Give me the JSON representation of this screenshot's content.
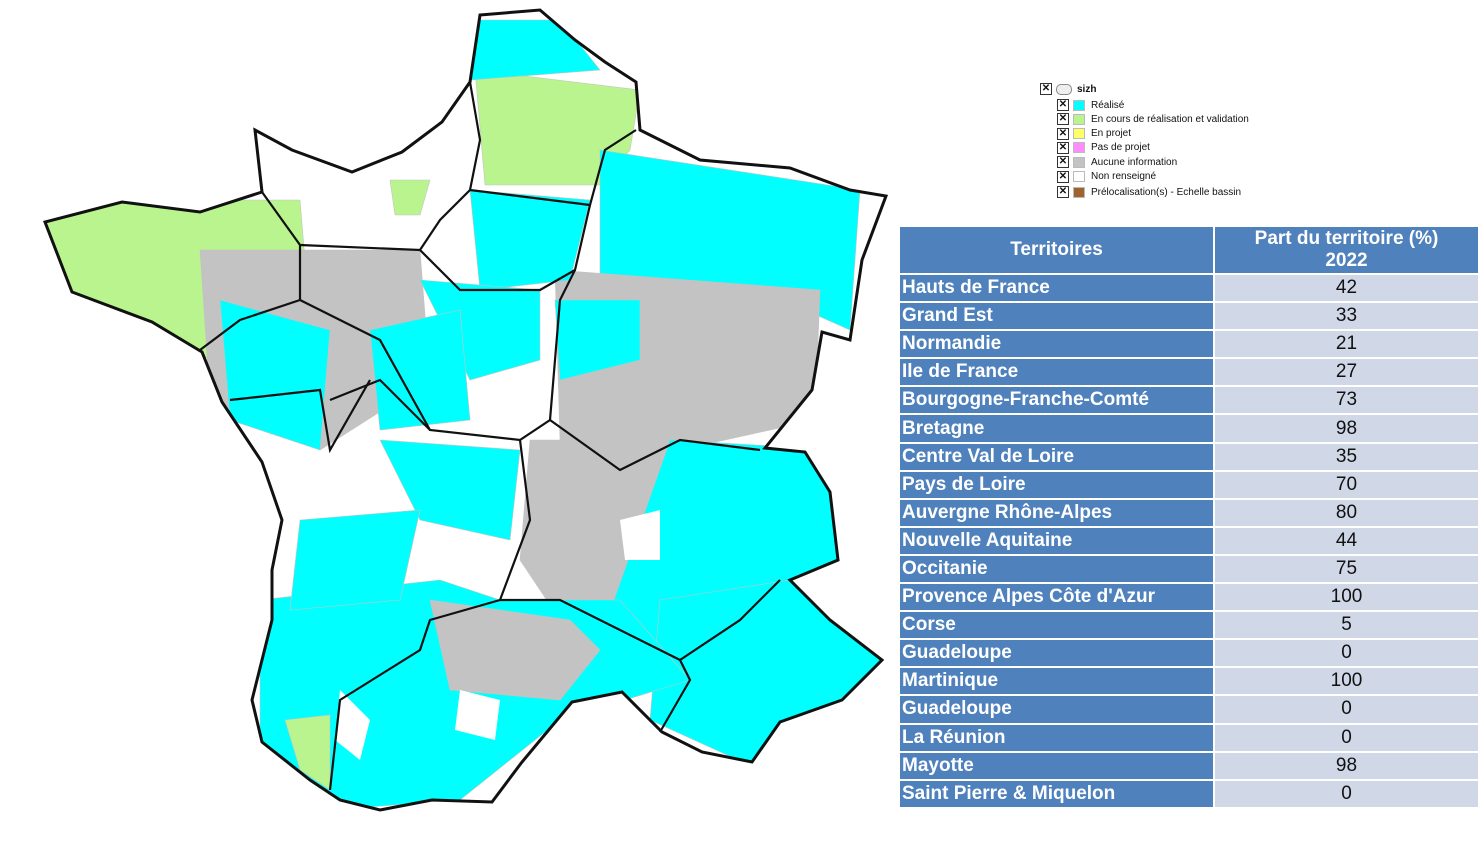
{
  "legend": {
    "title": "sizh",
    "items": [
      {
        "label": "Réalisé",
        "color": "#00ffff"
      },
      {
        "label": "En cours de réalisation et validation",
        "color": "#b9f48e"
      },
      {
        "label": "En projet",
        "color": "#ffff66"
      },
      {
        "label": "Pas de projet",
        "color": "#ff8cff"
      },
      {
        "label": "Aucune information",
        "color": "#c3c3c3"
      },
      {
        "label": "Non renseigné",
        "color": "#ffffff"
      },
      {
        "label": "Prélocalisation(s) - Echelle bassin",
        "color": "#a0622d"
      }
    ]
  },
  "table": {
    "header": {
      "territory": "Territoires",
      "share": "Part du territoire (%)",
      "year": "2022"
    },
    "rows": [
      [
        "Hauts de France",
        42
      ],
      [
        "Grand Est",
        33
      ],
      [
        "Normandie",
        21
      ],
      [
        "Ile de France",
        27
      ],
      [
        "Bourgogne-Franche-Comté",
        73
      ],
      [
        "Bretagne",
        98
      ],
      [
        "Centre Val de Loire",
        35
      ],
      [
        "Pays de Loire",
        70
      ],
      [
        "Auvergne Rhône-Alpes",
        80
      ],
      [
        "Nouvelle Aquitaine",
        44
      ],
      [
        "Occitanie",
        75
      ],
      [
        "Provence Alpes Côte d'Azur",
        100
      ],
      [
        "Corse",
        5
      ],
      [
        "Guadeloupe",
        0
      ],
      [
        "Martinique",
        100
      ],
      [
        "Guadeloupe",
        0
      ],
      [
        "La Réunion",
        0
      ],
      [
        "Mayotte",
        98
      ],
      [
        "Saint Pierre & Miquelon",
        0
      ]
    ]
  }
}
